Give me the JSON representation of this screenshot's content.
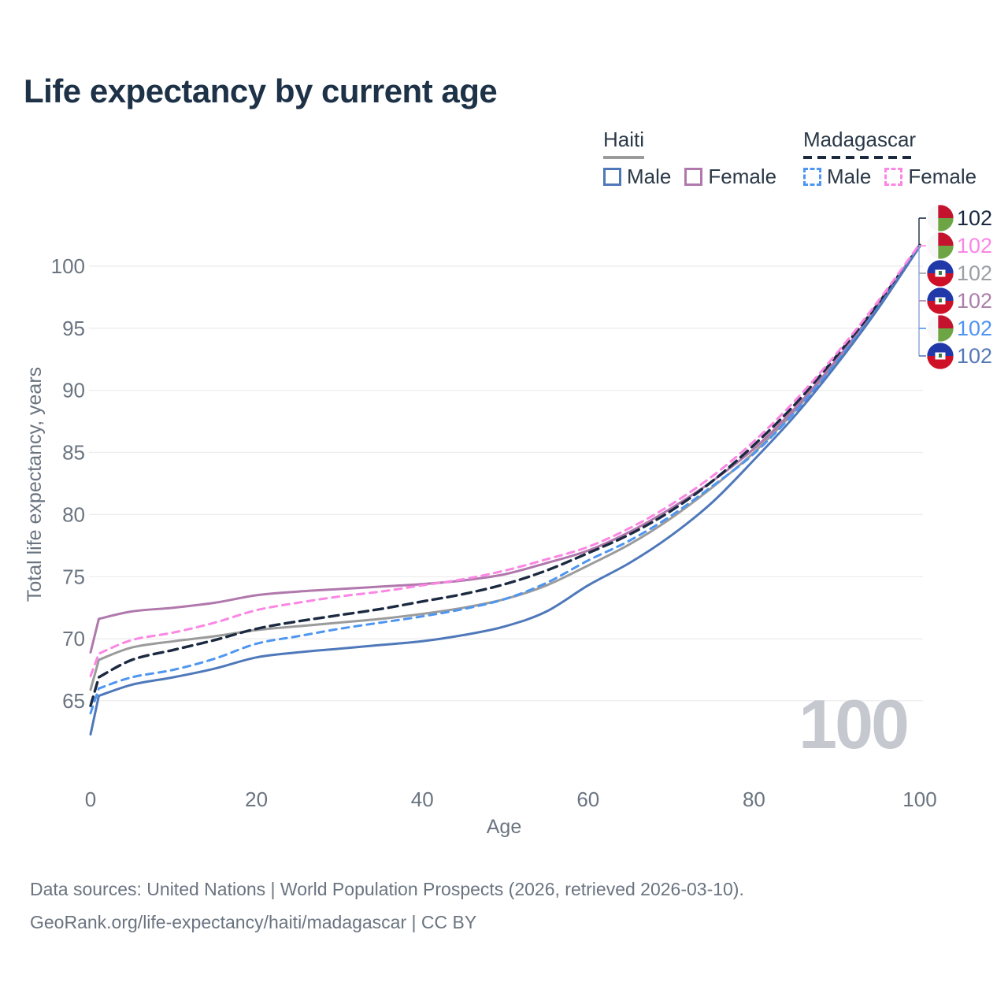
{
  "title": "Life expectancy by current age",
  "legend": {
    "groups": [
      {
        "label": "Haiti",
        "underline_color": "#9b9b9b",
        "underline_style": "solid",
        "items": [
          {
            "label": "Male",
            "color": "#4f78ba",
            "dashed": false
          },
          {
            "label": "Female",
            "color": "#b078ac",
            "dashed": false
          }
        ]
      },
      {
        "label": "Madagascar",
        "underline_color": "#1b2a40",
        "underline_style": "dashed",
        "items": [
          {
            "label": "Male",
            "color": "#4e96f0",
            "dashed": true
          },
          {
            "label": "Female",
            "color": "#fb86e4",
            "dashed": true
          }
        ]
      }
    ]
  },
  "chart_data": {
    "type": "line",
    "title": "Life expectancy by current age",
    "xlabel": "Age",
    "ylabel": "Total life expectancy, years",
    "xlim": [
      0,
      100
    ],
    "ylim": [
      61,
      103
    ],
    "x_ticks": [
      0,
      20,
      40,
      60,
      80,
      100
    ],
    "y_ticks": [
      65,
      70,
      75,
      80,
      85,
      90,
      95,
      100
    ],
    "grid": "horizontal",
    "gridline_color": "#ececec",
    "tick_label_color": "#6a7480",
    "watermark": "100",
    "watermark_color": "#c5c9cf",
    "x": [
      0,
      1,
      5,
      10,
      15,
      20,
      25,
      30,
      35,
      40,
      45,
      50,
      55,
      60,
      65,
      70,
      75,
      80,
      85,
      90,
      95,
      100
    ],
    "series": [
      {
        "name": "Haiti — Total",
        "country": "Haiti",
        "sex": "Total",
        "style": "solid",
        "color": "#9b9b9b",
        "values": [
          65.9,
          68.3,
          69.3,
          69.8,
          70.2,
          70.7,
          71.0,
          71.3,
          71.6,
          72.0,
          72.5,
          73.2,
          74.3,
          75.9,
          77.6,
          79.7,
          82.2,
          85.0,
          88.4,
          92.4,
          96.8,
          101.7
        ]
      },
      {
        "name": "Haiti — Female",
        "country": "Haiti",
        "sex": "Female",
        "style": "solid",
        "color": "#b078ac",
        "values": [
          68.9,
          71.6,
          72.2,
          72.5,
          72.9,
          73.5,
          73.8,
          74.0,
          74.2,
          74.4,
          74.7,
          75.2,
          76.1,
          77.1,
          78.6,
          80.5,
          82.7,
          85.3,
          88.6,
          92.5,
          96.9,
          101.7
        ]
      },
      {
        "name": "Madagascar — Total",
        "country": "Madagascar",
        "sex": "Total",
        "style": "dashed",
        "color": "#1b2a40",
        "values": [
          64.6,
          66.9,
          68.3,
          69.1,
          69.9,
          70.8,
          71.4,
          71.9,
          72.4,
          73.0,
          73.6,
          74.4,
          75.5,
          76.9,
          78.4,
          80.3,
          82.7,
          85.6,
          88.9,
          92.8,
          97.0,
          101.7
        ]
      },
      {
        "name": "Madagascar — Male",
        "country": "Madagascar",
        "sex": "Male",
        "style": "dashed",
        "color": "#4e96f0",
        "values": [
          64.0,
          66.0,
          66.9,
          67.5,
          68.4,
          69.6,
          70.2,
          70.8,
          71.3,
          71.8,
          72.4,
          73.2,
          74.5,
          76.3,
          77.9,
          79.9,
          82.3,
          84.9,
          88.3,
          92.3,
          96.7,
          101.6
        ]
      },
      {
        "name": "Haiti — Male",
        "country": "Haiti",
        "sex": "Male",
        "style": "solid",
        "color": "#4f78ba",
        "values": [
          62.3,
          65.4,
          66.3,
          66.9,
          67.6,
          68.5,
          68.9,
          69.2,
          69.5,
          69.8,
          70.3,
          71.0,
          72.2,
          74.3,
          76.1,
          78.3,
          81.0,
          84.4,
          88.0,
          92.1,
          96.6,
          101.6
        ]
      },
      {
        "name": "Madagascar — Female",
        "country": "Madagascar",
        "sex": "Female",
        "style": "dashed",
        "color": "#fb86e4",
        "values": [
          67.0,
          68.8,
          69.9,
          70.5,
          71.3,
          72.3,
          72.9,
          73.4,
          73.8,
          74.3,
          74.8,
          75.5,
          76.4,
          77.4,
          78.9,
          80.8,
          83.1,
          85.9,
          89.2,
          93.0,
          97.2,
          101.8
        ]
      }
    ],
    "endpoint_labels": [
      {
        "value": "102",
        "series": "Madagascar — Total",
        "country": "Madagascar",
        "color": "#1b2a40"
      },
      {
        "value": "102",
        "series": "Madagascar — Female",
        "country": "Madagascar",
        "color": "#fb86e4"
      },
      {
        "value": "102",
        "series": "Haiti — Total",
        "country": "Haiti",
        "color": "#9aa0a6"
      },
      {
        "value": "102",
        "series": "Haiti — Female",
        "country": "Haiti",
        "color": "#ad7fab"
      },
      {
        "value": "102",
        "series": "Madagascar — Male",
        "country": "Madagascar",
        "color": "#4e94f1"
      },
      {
        "value": "102",
        "series": "Haiti — Male",
        "country": "Haiti",
        "color": "#5579b8"
      }
    ],
    "flag_colors": {
      "haiti_blue": "#2038a8",
      "haiti_red": "#cf1127",
      "madagascar_red": "#c3132f",
      "madagascar_green": "#6da545",
      "madagascar_white": "#f7f7f7"
    }
  },
  "footer": {
    "line1": "Data sources: United Nations | World Population Prospects (2026, retrieved 2026-03-10).",
    "line2": "GeoRank.org/life-expectancy/haiti/madagascar | CC BY"
  }
}
